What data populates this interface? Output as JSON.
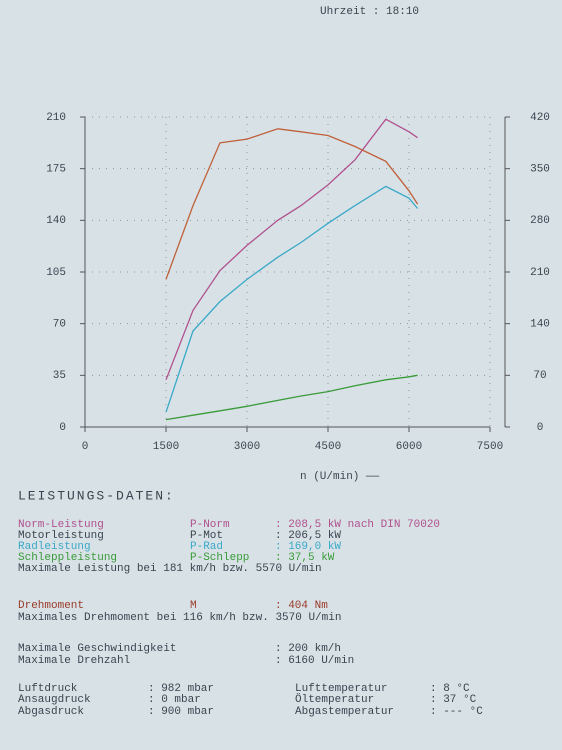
{
  "chart_data": {
    "type": "line",
    "header": "Uhrzeit     : 18:10",
    "xlabel": "n (U/min) ——",
    "x": [
      1500,
      2000,
      2500,
      3000,
      3570,
      4000,
      4500,
      5000,
      5570,
      6000,
      6160
    ],
    "xlim": [
      0,
      7500
    ],
    "xticks": [
      0,
      1500,
      3000,
      4500,
      6000,
      7500
    ],
    "ylim": [
      0,
      210
    ],
    "yticks": [
      0,
      35,
      70,
      105,
      140,
      175,
      210
    ],
    "y2lim": [
      0,
      420
    ],
    "y2ticks": [
      0,
      70,
      140,
      210,
      280,
      350,
      420
    ],
    "grid": true,
    "series": [
      {
        "name": "Norm-Leistung",
        "color": "#b0508e",
        "values": [
          32,
          79,
          106,
          123,
          140,
          150,
          164,
          181,
          208.5,
          200,
          196
        ]
      },
      {
        "name": "Drehmoment",
        "color": "#c0603a",
        "axis": "y2",
        "values": [
          200,
          300,
          385,
          390,
          404,
          400,
          395,
          380,
          360,
          320,
          302
        ]
      },
      {
        "name": "Radleistung",
        "color": "#3aa8c8",
        "values": [
          10,
          65,
          85,
          100,
          115,
          125,
          138,
          150,
          163,
          155,
          148
        ]
      },
      {
        "name": "Schleppleistung",
        "color": "#3a9a3a",
        "values": [
          5,
          8,
          11,
          14,
          18,
          21,
          24,
          28,
          32,
          34,
          35
        ]
      }
    ]
  },
  "report": {
    "heading": "LEISTUNGS-DATEN:",
    "motor_label": "Motorleistung",
    "symbols": [
      "P-Norm",
      "P-Mot",
      "P-Rad",
      "P-Schlepp",
      "M"
    ],
    "values": [
      ": 208,5 kW nach DIN 70020",
      ": 206,5 kW",
      ": 169,0 kW",
      ": 37,5 kW",
      ": 404 Nm"
    ],
    "max_power": "Maximale Leistung bei 181 km/h bzw.  5570 U/min",
    "max_torque": "Maximales Drehmoment bei 116 km/h bzw.  3570 U/min",
    "speed": [
      "Maximale Geschwindigkeit",
      ": 200 km/h"
    ],
    "rpm": [
      "Maximale Drehzahl",
      ": 6160 U/min"
    ],
    "ambient": [
      [
        "Luftdruck",
        ": 982 mbar",
        "Lufttemperatur",
        ": 8 °C"
      ],
      [
        "Ansaugdruck",
        ": 0 mbar",
        "Öltemperatur",
        ": 37 °C"
      ],
      [
        "Abgasdruck",
        ": 900 mbar",
        "Abgastemperatur",
        ": --- °C"
      ]
    ]
  }
}
